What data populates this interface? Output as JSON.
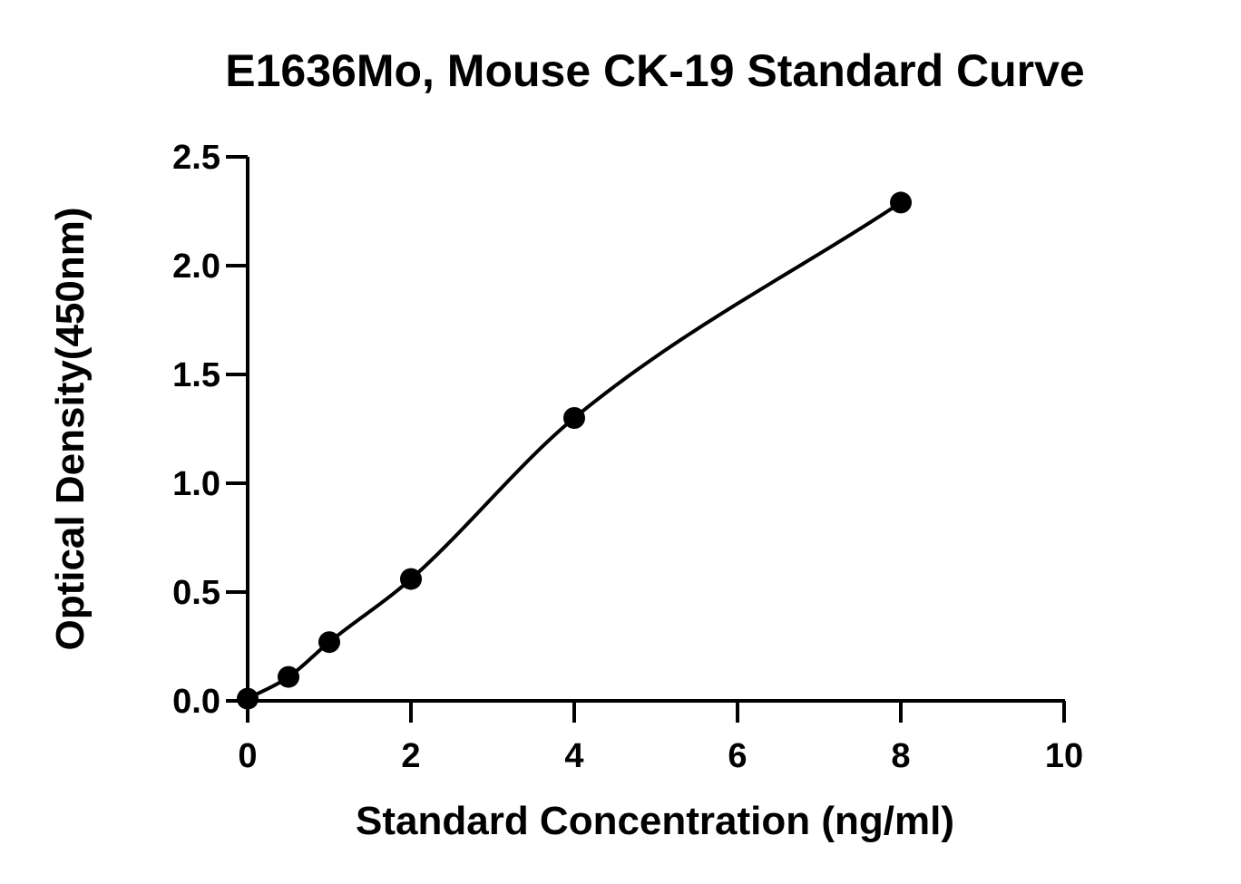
{
  "chart_data": {
    "type": "scatter",
    "title": "E1636Mo, Mouse CK-19 Standard Curve",
    "xlabel": "Standard Concentration (ng/ml)",
    "ylabel": "Optical Density(450nm)",
    "xlim": [
      0,
      10
    ],
    "ylim": [
      0,
      2.5
    ],
    "x_ticks": [
      "0",
      "2",
      "4",
      "6",
      "8",
      "10"
    ],
    "y_ticks": [
      "0.0",
      "0.5",
      "1.0",
      "1.5",
      "2.0",
      "2.5"
    ],
    "grid": false,
    "series": [
      {
        "x": [
          0,
          0.5,
          1,
          2,
          4,
          8
        ],
        "y": [
          0.01,
          0.11,
          0.27,
          0.56,
          1.3,
          2.29
        ],
        "fit_curve": true
      }
    ]
  }
}
